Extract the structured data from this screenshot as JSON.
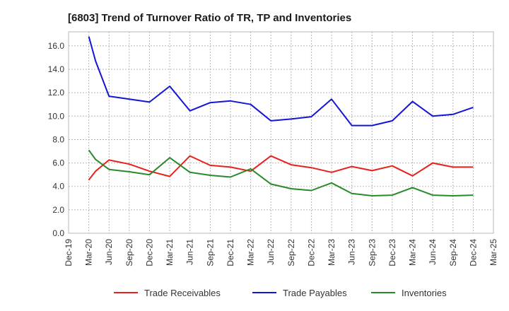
{
  "chart_data": {
    "type": "line",
    "title": "[6803]  Trend of Turnover Ratio of TR, TP and Inventories",
    "xlabel": "",
    "ylabel": "",
    "x_tick_labels": [
      "Dec-19",
      "Mar-20",
      "Jun-20",
      "Sep-20",
      "Dec-20",
      "Mar-21",
      "Jun-21",
      "Sep-21",
      "Dec-21",
      "Mar-22",
      "Jun-22",
      "Sep-22",
      "Dec-22",
      "Mar-23",
      "Jun-23",
      "Sep-23",
      "Dec-23",
      "Mar-24",
      "Jun-24",
      "Sep-24",
      "Dec-24",
      "Mar-25"
    ],
    "y_tick_labels": [
      "0.0",
      "2.0",
      "4.0",
      "6.0",
      "8.0",
      "10.0",
      "12.0",
      "14.0",
      "16.0"
    ],
    "ylim": [
      0,
      17.2
    ],
    "grid": true,
    "legend_position": "bottom",
    "series": [
      {
        "name": "Trade Receivables",
        "color": "#e8201d",
        "points": [
          {
            "x": "Mar-20",
            "y": 4.55
          },
          {
            "x": "Apr-20",
            "y": 5.3
          },
          {
            "x": "Jun-20",
            "y": 6.25
          },
          {
            "x": "Sep-20",
            "y": 5.9
          },
          {
            "x": "Dec-20",
            "y": 5.3
          },
          {
            "x": "Mar-21",
            "y": 4.85
          },
          {
            "x": "Jun-21",
            "y": 6.6
          },
          {
            "x": "Sep-21",
            "y": 5.8
          },
          {
            "x": "Dec-21",
            "y": 5.65
          },
          {
            "x": "Mar-22",
            "y": 5.3
          },
          {
            "x": "Jun-22",
            "y": 6.6
          },
          {
            "x": "Sep-22",
            "y": 5.85
          },
          {
            "x": "Dec-22",
            "y": 5.6
          },
          {
            "x": "Mar-23",
            "y": 5.2
          },
          {
            "x": "Jun-23",
            "y": 5.7
          },
          {
            "x": "Sep-23",
            "y": 5.35
          },
          {
            "x": "Dec-23",
            "y": 5.75
          },
          {
            "x": "Mar-24",
            "y": 4.9
          },
          {
            "x": "Jun-24",
            "y": 6.0
          },
          {
            "x": "Sep-24",
            "y": 5.65
          },
          {
            "x": "Dec-24",
            "y": 5.65
          }
        ]
      },
      {
        "name": "Trade Payables",
        "color": "#1515d8",
        "points": [
          {
            "x": "Mar-20",
            "y": 16.8
          },
          {
            "x": "Apr-20",
            "y": 14.7
          },
          {
            "x": "Jun-20",
            "y": 11.7
          },
          {
            "x": "Sep-20",
            "y": 11.45
          },
          {
            "x": "Dec-20",
            "y": 11.2
          },
          {
            "x": "Mar-21",
            "y": 12.55
          },
          {
            "x": "Jun-21",
            "y": 10.45
          },
          {
            "x": "Sep-21",
            "y": 11.15
          },
          {
            "x": "Dec-21",
            "y": 11.3
          },
          {
            "x": "Mar-22",
            "y": 11.0
          },
          {
            "x": "Jun-22",
            "y": 9.6
          },
          {
            "x": "Sep-22",
            "y": 9.75
          },
          {
            "x": "Dec-22",
            "y": 9.95
          },
          {
            "x": "Mar-23",
            "y": 11.45
          },
          {
            "x": "Jun-23",
            "y": 9.2
          },
          {
            "x": "Sep-23",
            "y": 9.2
          },
          {
            "x": "Dec-23",
            "y": 9.6
          },
          {
            "x": "Mar-24",
            "y": 11.25
          },
          {
            "x": "Jun-24",
            "y": 10.0
          },
          {
            "x": "Sep-24",
            "y": 10.15
          },
          {
            "x": "Dec-24",
            "y": 10.75
          }
        ]
      },
      {
        "name": "Inventories",
        "color": "#2a8a2a",
        "points": [
          {
            "x": "Mar-20",
            "y": 7.1
          },
          {
            "x": "Apr-20",
            "y": 6.3
          },
          {
            "x": "Jun-20",
            "y": 5.45
          },
          {
            "x": "Sep-20",
            "y": 5.25
          },
          {
            "x": "Dec-20",
            "y": 5.0
          },
          {
            "x": "Mar-21",
            "y": 6.45
          },
          {
            "x": "Jun-21",
            "y": 5.2
          },
          {
            "x": "Sep-21",
            "y": 4.95
          },
          {
            "x": "Dec-21",
            "y": 4.8
          },
          {
            "x": "Mar-22",
            "y": 5.5
          },
          {
            "x": "Jun-22",
            "y": 4.2
          },
          {
            "x": "Sep-22",
            "y": 3.8
          },
          {
            "x": "Dec-22",
            "y": 3.65
          },
          {
            "x": "Mar-23",
            "y": 4.3
          },
          {
            "x": "Jun-23",
            "y": 3.4
          },
          {
            "x": "Sep-23",
            "y": 3.2
          },
          {
            "x": "Dec-23",
            "y": 3.25
          },
          {
            "x": "Mar-24",
            "y": 3.9
          },
          {
            "x": "Jun-24",
            "y": 3.25
          },
          {
            "x": "Sep-24",
            "y": 3.2
          },
          {
            "x": "Dec-24",
            "y": 3.25
          }
        ]
      }
    ]
  }
}
